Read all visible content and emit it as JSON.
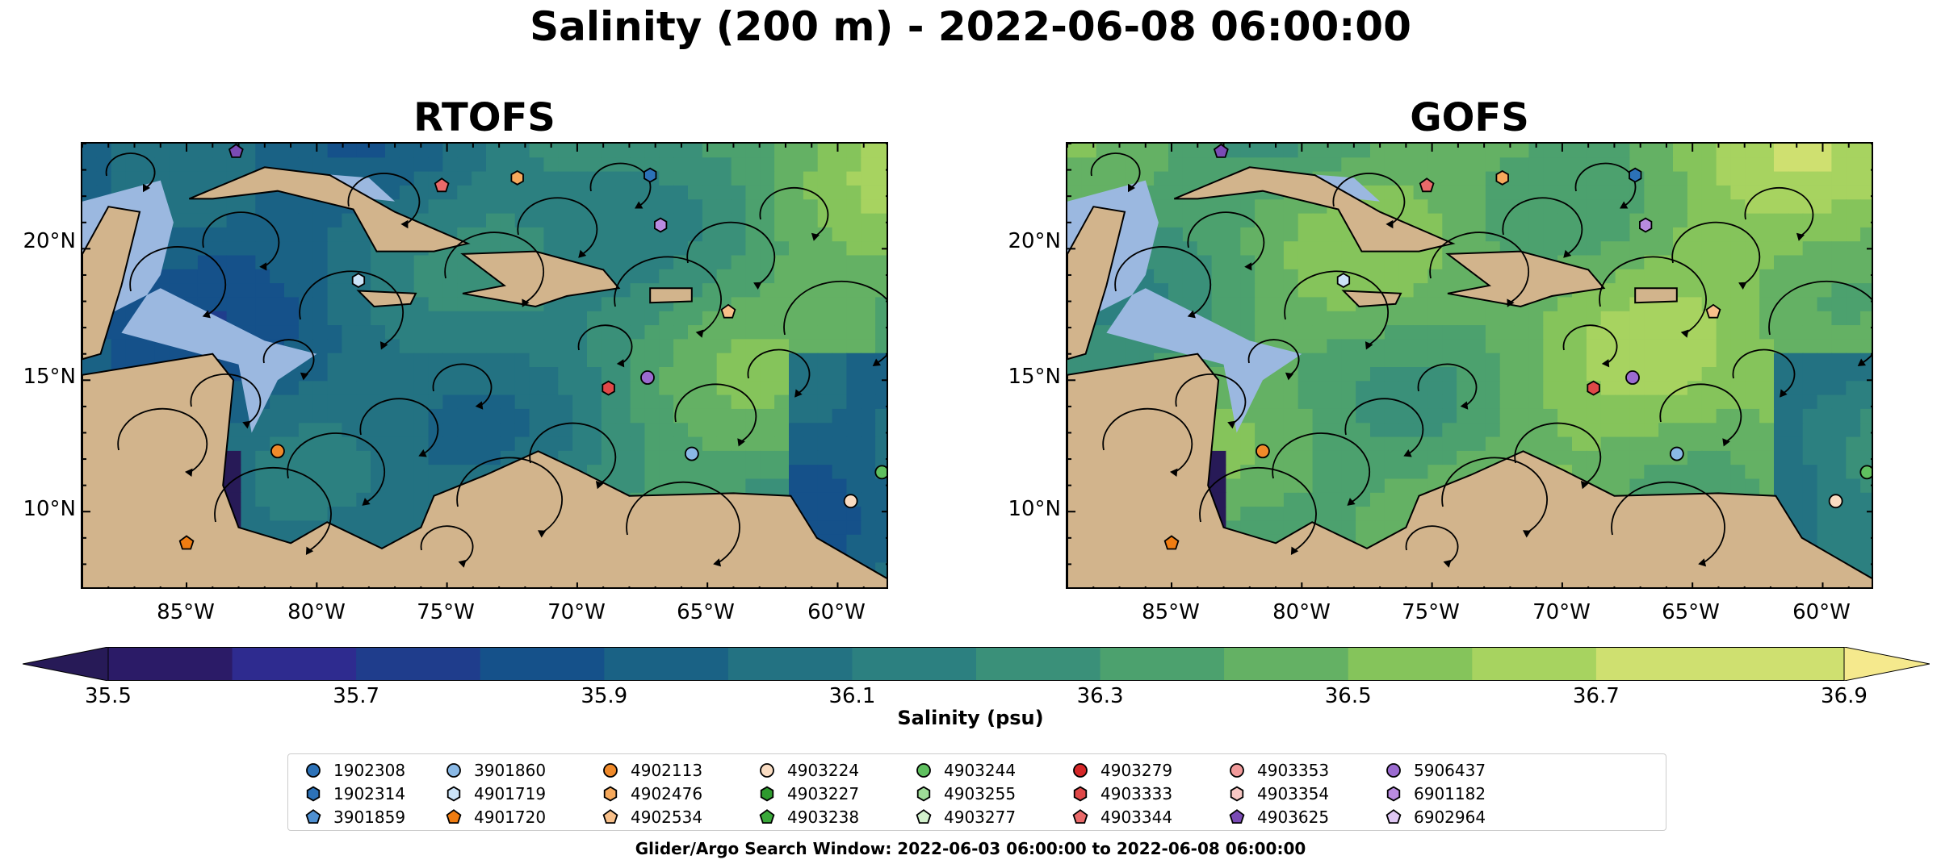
{
  "chart_data": {
    "type": "heatmap",
    "title": "Salinity (200 m) - 2022-06-08 06:00:00",
    "panels": [
      {
        "name": "RTOFS",
        "mean_field": "lower salinity, 35.7-36.2 psu dominant in western and central basin"
      },
      {
        "name": "GOFS",
        "mean_field": "higher salinity, 36.3-36.8 psu dominant across basin"
      }
    ],
    "x_ticks": [
      "85°W",
      "80°W",
      "75°W",
      "70°W",
      "65°W",
      "60°W"
    ],
    "y_ticks": [
      "20°N",
      "15°N",
      "10°N"
    ],
    "colorbar": {
      "label": "Salinity (psu)",
      "range": [
        35.5,
        36.9
      ],
      "ticks": [
        "35.5",
        "35.7",
        "35.9",
        "36.1",
        "36.3",
        "36.5",
        "36.7",
        "36.9"
      ],
      "colormap": "haline",
      "colors": [
        "#2b1b67",
        "#2e2b8f",
        "#1f3d8c",
        "#15518a",
        "#1a6285",
        "#237282",
        "#2c8080",
        "#3a9079",
        "#4ca16e",
        "#64b164",
        "#85c45b",
        "#a7d360",
        "#cfe070"
      ],
      "extend_min_color": "#271a57",
      "extend_max_color": "#f5e98d"
    },
    "legend": [
      {
        "id": "1902308",
        "marker": "circle",
        "color": "#2c72b8"
      },
      {
        "id": "1902314",
        "marker": "hexagon",
        "color": "#2c72b8"
      },
      {
        "id": "3901859",
        "marker": "pentagon",
        "color": "#4f90d2"
      },
      {
        "id": "3901860",
        "marker": "circle",
        "color": "#8ab9e6"
      },
      {
        "id": "4901719",
        "marker": "hexagon",
        "color": "#cbe3f7"
      },
      {
        "id": "4901720",
        "marker": "pentagon",
        "color": "#f07d12"
      },
      {
        "id": "4902113",
        "marker": "circle",
        "color": "#f08a2a"
      },
      {
        "id": "4902476",
        "marker": "hexagon",
        "color": "#f6a95c"
      },
      {
        "id": "4902534",
        "marker": "pentagon",
        "color": "#f8c08a"
      },
      {
        "id": "4903224",
        "marker": "circle",
        "color": "#f9dcc2"
      },
      {
        "id": "4903227",
        "marker": "hexagon",
        "color": "#2e9a2e"
      },
      {
        "id": "4903238",
        "marker": "pentagon",
        "color": "#3aa83a"
      },
      {
        "id": "4903244",
        "marker": "circle",
        "color": "#5fc05f"
      },
      {
        "id": "4903255",
        "marker": "hexagon",
        "color": "#9edc97"
      },
      {
        "id": "4903277",
        "marker": "pentagon",
        "color": "#d3f1cd"
      },
      {
        "id": "4903279",
        "marker": "circle",
        "color": "#d62728"
      },
      {
        "id": "4903333",
        "marker": "hexagon",
        "color": "#e04848"
      },
      {
        "id": "4903344",
        "marker": "pentagon",
        "color": "#ea6a6a"
      },
      {
        "id": "4903353",
        "marker": "circle",
        "color": "#f19a9a"
      },
      {
        "id": "4903354",
        "marker": "hexagon",
        "color": "#f8c8c4"
      },
      {
        "id": "4903625",
        "marker": "pentagon",
        "color": "#7a4bb5"
      },
      {
        "id": "5906437",
        "marker": "circle",
        "color": "#9b6bd0"
      },
      {
        "id": "6901182",
        "marker": "hexagon",
        "color": "#b98be0"
      },
      {
        "id": "6902964",
        "marker": "pentagon",
        "color": "#e0c8f4"
      }
    ],
    "footer": "Glider/Argo Search Window: 2022-06-03 06:00:00 to 2022-06-08 06:00:00"
  }
}
